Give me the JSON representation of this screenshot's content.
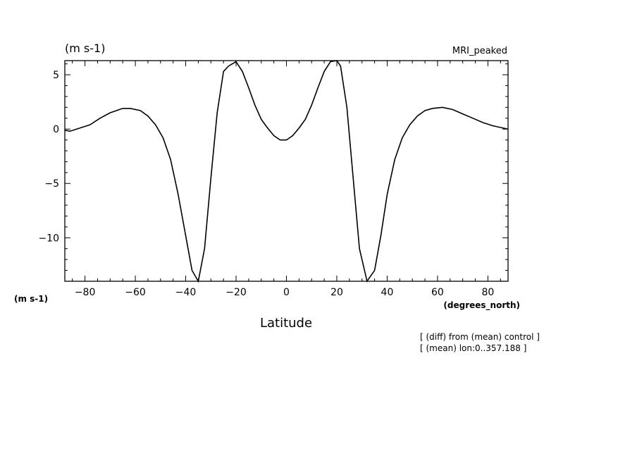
{
  "chart_data": {
    "type": "line",
    "title": "MRI_peaked",
    "units_top": "(m s-1)",
    "units_left": "(m s-1)",
    "xlabel": "Latitude",
    "xunits": "(degrees_north)",
    "xlim": [
      -88,
      88
    ],
    "ylim": [
      -14,
      6.3
    ],
    "xticks": [
      -80,
      -60,
      -40,
      -20,
      0,
      20,
      40,
      60,
      80
    ],
    "yticks": [
      5,
      0,
      -5,
      -10
    ],
    "annotations": [
      "[ (diff) from (mean) control ]",
      "[ (mean) lon:0..357.188 ]"
    ],
    "grid": false,
    "series": [
      {
        "x": [
          -88,
          -86,
          -82,
          -78,
          -74,
          -70,
          -65,
          -62,
          -58,
          -55,
          -52,
          -49,
          -46,
          -43,
          -40,
          -37.5,
          -35,
          -32.5,
          -30,
          -27.5,
          -25,
          -23,
          -20,
          -17.5,
          -15,
          -12.5,
          -10,
          -7.5,
          -5,
          -2.5,
          0,
          2.5,
          5,
          7.5,
          10,
          12.5,
          15,
          17.5,
          20,
          21.5,
          24,
          26.5,
          29,
          32,
          35,
          37.5,
          40,
          43,
          46,
          49,
          52,
          55,
          58,
          62,
          66,
          70,
          74,
          78,
          82,
          86,
          88
        ],
        "y": [
          -0.1,
          -0.2,
          0.1,
          0.4,
          1.0,
          1.5,
          1.9,
          1.9,
          1.7,
          1.2,
          0.4,
          -0.8,
          -2.8,
          -6.0,
          -9.8,
          -13.0,
          -14.0,
          -11.0,
          -4.5,
          1.5,
          5.3,
          5.8,
          6.2,
          5.3,
          3.8,
          2.2,
          0.9,
          0.1,
          -0.6,
          -1.0,
          -1.0,
          -0.6,
          0.1,
          0.9,
          2.2,
          3.8,
          5.3,
          6.2,
          6.3,
          5.8,
          2.0,
          -4.5,
          -11.0,
          -14.0,
          -13.0,
          -9.8,
          -6.0,
          -2.8,
          -0.8,
          0.4,
          1.2,
          1.7,
          1.9,
          2.0,
          1.8,
          1.4,
          1.0,
          0.6,
          0.3,
          0.1,
          0.0
        ]
      }
    ]
  }
}
